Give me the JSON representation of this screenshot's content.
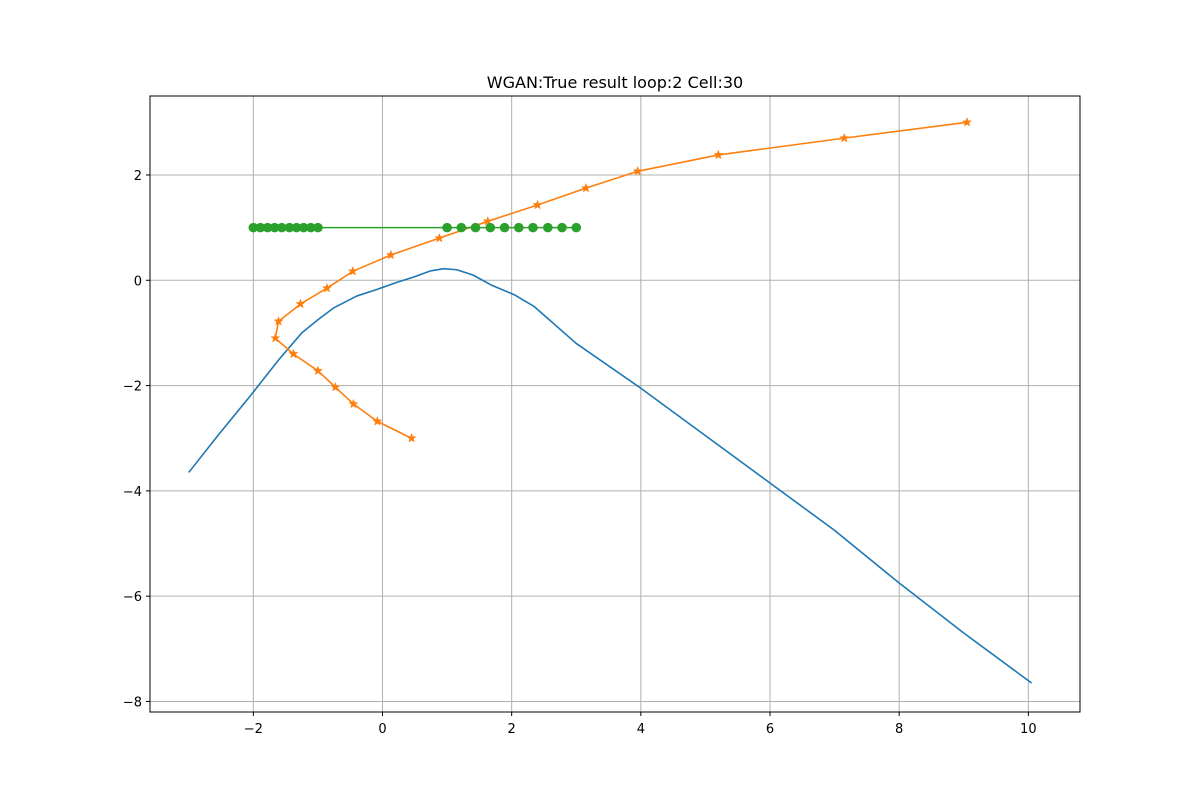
{
  "chart_data": {
    "type": "line",
    "title": "WGAN:True result loop:2 Cell:30",
    "xlabel": "",
    "ylabel": "",
    "xlim": [
      -3.6,
      10.8
    ],
    "ylim": [
      -8.2,
      3.5
    ],
    "xticks": [
      -2,
      0,
      2,
      4,
      6,
      8,
      10
    ],
    "yticks": [
      -8,
      -6,
      -4,
      -2,
      0,
      2
    ],
    "xtick_labels": [
      "−2",
      "0",
      "2",
      "4",
      "6",
      "8",
      "10"
    ],
    "ytick_labels": [
      "−8",
      "−6",
      "−4",
      "−2",
      "0",
      "2"
    ],
    "grid": true,
    "series": [
      {
        "color": "#1f77b4",
        "marker": "none",
        "x": [
          -3.0,
          -2.55,
          -2.05,
          -1.6,
          -1.25,
          -1.0,
          -0.75,
          -0.4,
          -0.1,
          0.2,
          0.5,
          0.75,
          0.95,
          1.15,
          1.4,
          1.7,
          2.05,
          2.35,
          3.0,
          4.0,
          5.0,
          6.0,
          7.0,
          8.0,
          9.0,
          10.05
        ],
        "y": [
          -3.65,
          -2.95,
          -2.2,
          -1.5,
          -1.0,
          -0.75,
          -0.52,
          -0.3,
          -0.18,
          -0.05,
          0.07,
          0.18,
          0.22,
          0.2,
          0.1,
          -0.1,
          -0.28,
          -0.5,
          -1.2,
          -2.05,
          -2.95,
          -3.85,
          -4.75,
          -5.75,
          -6.7,
          -7.65
        ]
      },
      {
        "color": "#ff7f0e",
        "marker": "star",
        "x": [
          0.45,
          -0.08,
          -0.45,
          -0.73,
          -1.0,
          -1.38,
          -1.66,
          -1.61,
          -1.27,
          -0.86,
          -0.46,
          0.13,
          0.88,
          1.63,
          2.4,
          3.15,
          3.95,
          5.2,
          7.15,
          9.05
        ],
        "y": [
          -3.0,
          -2.68,
          -2.35,
          -2.03,
          -1.72,
          -1.4,
          -1.1,
          -0.78,
          -0.45,
          -0.15,
          0.17,
          0.48,
          0.8,
          1.12,
          1.43,
          1.75,
          2.07,
          2.38,
          2.7,
          3.0
        ]
      },
      {
        "color": "#2ca02c",
        "marker": "circle",
        "x": [
          -2.0,
          -1.89,
          -1.78,
          -1.67,
          -1.56,
          -1.44,
          -1.33,
          -1.22,
          -1.11,
          -1.0,
          1.0,
          1.22,
          1.44,
          1.67,
          1.89,
          2.11,
          2.33,
          2.56,
          2.78,
          3.0
        ],
        "y": [
          1.0,
          1.0,
          1.0,
          1.0,
          1.0,
          1.0,
          1.0,
          1.0,
          1.0,
          1.0,
          1.0,
          1.0,
          1.0,
          1.0,
          1.0,
          1.0,
          1.0,
          1.0,
          1.0,
          1.0
        ]
      }
    ]
  }
}
